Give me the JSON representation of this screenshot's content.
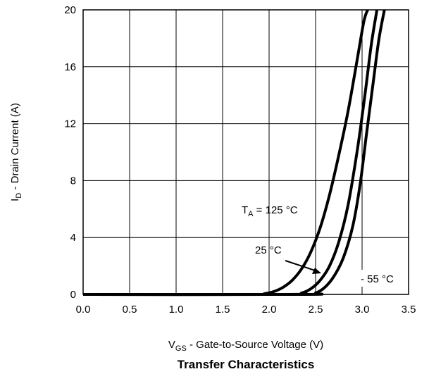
{
  "chart_data": {
    "type": "line",
    "title": "Transfer Characteristics",
    "xlabel": {
      "main": "V",
      "sub": "GS",
      "rest": " - Gate-to-Source Voltage (V)"
    },
    "ylabel": {
      "main": "I",
      "sub": "D",
      "rest": " - Drain Current (A)"
    },
    "xlim": [
      0,
      3.5
    ],
    "ylim": [
      0,
      20
    ],
    "xticks": [
      "0.0",
      "0.5",
      "1.0",
      "1.5",
      "2.0",
      "2.5",
      "3.0",
      "3.5"
    ],
    "yticks": [
      "0",
      "4",
      "8",
      "12",
      "16",
      "20"
    ],
    "grid": true,
    "series": [
      {
        "name": "TA = 125 °C",
        "x": [
          0,
          1.8,
          1.95,
          2.05,
          2.15,
          2.25,
          2.35,
          2.45,
          2.55,
          2.65,
          2.75,
          2.85,
          2.95,
          3.02,
          3.06
        ],
        "y": [
          0,
          0,
          0.05,
          0.2,
          0.5,
          1.0,
          1.8,
          3.0,
          4.7,
          7.0,
          9.8,
          12.9,
          16.6,
          19.2,
          20
        ]
      },
      {
        "name": "25 °C",
        "x": [
          0,
          2.2,
          2.35,
          2.45,
          2.55,
          2.65,
          2.75,
          2.85,
          2.95,
          3.03,
          3.1,
          3.16
        ],
        "y": [
          0,
          0,
          0.1,
          0.4,
          1.0,
          2.0,
          3.7,
          6.3,
          10.2,
          14.0,
          17.6,
          20
        ]
      },
      {
        "name": "- 55 °C",
        "x": [
          0,
          2.35,
          2.5,
          2.6,
          2.7,
          2.8,
          2.9,
          2.98,
          3.05,
          3.12,
          3.18,
          3.24
        ],
        "y": [
          0,
          0,
          0.1,
          0.5,
          1.3,
          2.6,
          4.8,
          7.8,
          11.4,
          14.9,
          17.9,
          20
        ]
      }
    ],
    "annotations": {
      "t125": {
        "main": "T",
        "sub": "A",
        "rest": " = 125 °C"
      },
      "t25": "25 °C",
      "t55": "- 55 °C"
    }
  }
}
